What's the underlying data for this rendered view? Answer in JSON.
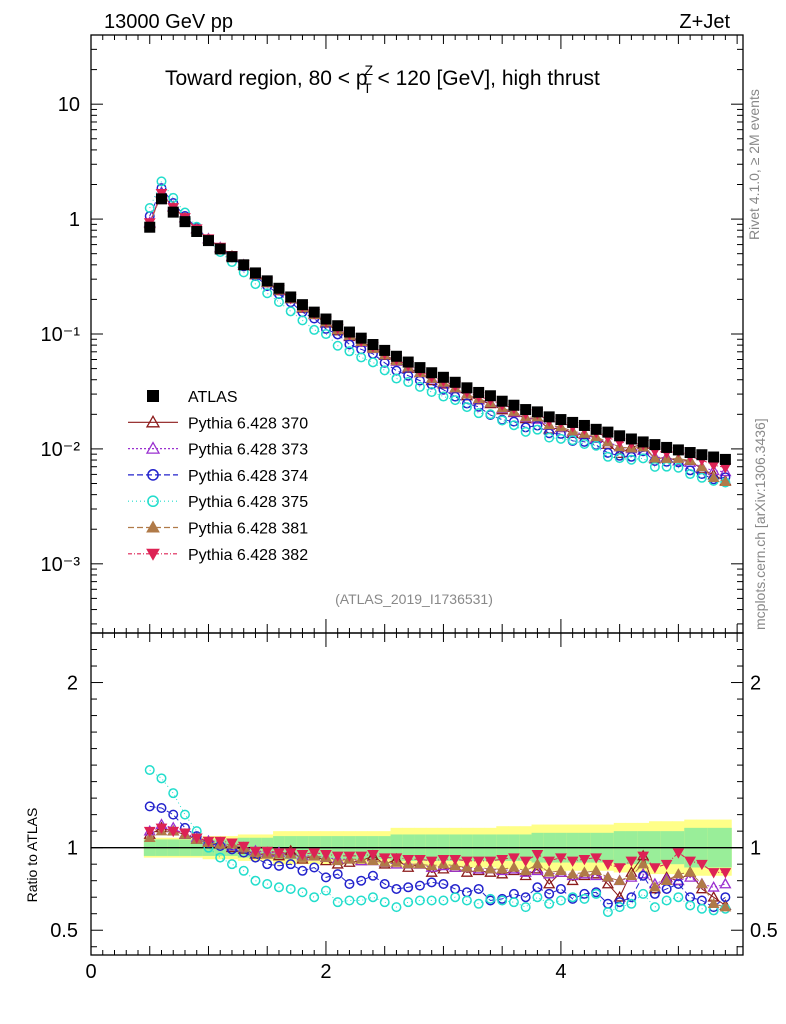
{
  "header": {
    "left": "13000 GeV pp",
    "right": "Z+Jet"
  },
  "title": {
    "prefix": "Toward region, 80 < p",
    "sup": "Z",
    "sub": "T",
    "suffix": " < 120 [GeV], high thrust"
  },
  "side": {
    "rivet": "Rivet 4.1.0, ≥ 2M events",
    "mcplots": "mcplots.cern.ch [arXiv:1306.3436]"
  },
  "analysis_tag": "(ATLAS_2019_I1736531)",
  "colors": {
    "ATLAS": "#000000",
    "370": "#8b1a1a",
    "373": "#9a30d0",
    "374": "#2222cc",
    "375": "#22ddcc",
    "381": "#b07a48",
    "382": "#dd2255",
    "band_inner": "#99ee99",
    "band_outer": "#ffff88"
  },
  "legend": [
    {
      "key": "ATLAS",
      "label": "ATLAS"
    },
    {
      "key": "370",
      "label": "Pythia 6.428 370"
    },
    {
      "key": "373",
      "label": "Pythia 6.428 373"
    },
    {
      "key": "374",
      "label": "Pythia 6.428 374"
    },
    {
      "key": "375",
      "label": "Pythia 6.428 375"
    },
    {
      "key": "381",
      "label": "Pythia 6.428 381"
    },
    {
      "key": "382",
      "label": "Pythia 6.428 382"
    }
  ],
  "chart_data": {
    "type": "scatter",
    "x": [
      0.5,
      0.6,
      0.7,
      0.8,
      0.9,
      1.0,
      1.1,
      1.2,
      1.3,
      1.4,
      1.5,
      1.6,
      1.7,
      1.8,
      1.9,
      2.0,
      2.1,
      2.2,
      2.3,
      2.4,
      2.5,
      2.6,
      2.7,
      2.8,
      2.9,
      3.0,
      3.1,
      3.2,
      3.3,
      3.4,
      3.5,
      3.6,
      3.7,
      3.8,
      3.9,
      4.0,
      4.1,
      4.2,
      4.3,
      4.4,
      4.5,
      4.6,
      4.7,
      4.8,
      4.9,
      5.0,
      5.1,
      5.2,
      5.3,
      5.4
    ],
    "atlas": [
      0.85,
      1.5,
      1.15,
      0.95,
      0.78,
      0.65,
      0.55,
      0.47,
      0.4,
      0.34,
      0.29,
      0.25,
      0.21,
      0.18,
      0.155,
      0.135,
      0.118,
      0.104,
      0.092,
      0.081,
      0.072,
      0.064,
      0.057,
      0.051,
      0.046,
      0.042,
      0.038,
      0.034,
      0.031,
      0.029,
      0.026,
      0.024,
      0.022,
      0.021,
      0.019,
      0.018,
      0.017,
      0.016,
      0.0148,
      0.014,
      0.013,
      0.0122,
      0.0115,
      0.0109,
      0.0103,
      0.0098,
      0.0093,
      0.0089,
      0.0085,
      0.0081
    ],
    "main": {
      "xlim": [
        0,
        5.55
      ],
      "ylim": [
        0.00025,
        40
      ],
      "yscale": "log",
      "ytick_labels": [
        "10⁻³",
        "10⁻²",
        "10⁻¹",
        "1",
        "10"
      ]
    },
    "ratio": {
      "ylabel": "Ratio to ATLAS",
      "ylim": [
        0.35,
        2.3
      ],
      "yticks": [
        0.5,
        1,
        2
      ],
      "ytick_labels": [
        "0.5",
        "1",
        "2"
      ],
      "xticks": [
        0,
        2,
        4
      ],
      "xtick_labels": [
        "0",
        "2",
        "4"
      ]
    },
    "band": {
      "inner": [
        0.05,
        0.05,
        0.05,
        0.05,
        0.05,
        0.05,
        0.05,
        0.05,
        0.06,
        0.06,
        0.06,
        0.07,
        0.07,
        0.07,
        0.07,
        0.07,
        0.07,
        0.07,
        0.07,
        0.07,
        0.07,
        0.08,
        0.08,
        0.08,
        0.08,
        0.08,
        0.08,
        0.08,
        0.08,
        0.08,
        0.08,
        0.08,
        0.08,
        0.09,
        0.09,
        0.09,
        0.09,
        0.09,
        0.09,
        0.09,
        0.1,
        0.1,
        0.1,
        0.1,
        0.1,
        0.1,
        0.12,
        0.12,
        0.12,
        0.12
      ],
      "outer": [
        0.06,
        0.06,
        0.06,
        0.06,
        0.06,
        0.07,
        0.07,
        0.07,
        0.08,
        0.08,
        0.08,
        0.1,
        0.1,
        0.1,
        0.1,
        0.1,
        0.1,
        0.1,
        0.1,
        0.1,
        0.1,
        0.12,
        0.12,
        0.12,
        0.12,
        0.12,
        0.12,
        0.12,
        0.12,
        0.12,
        0.13,
        0.13,
        0.13,
        0.14,
        0.14,
        0.14,
        0.14,
        0.14,
        0.14,
        0.14,
        0.15,
        0.15,
        0.15,
        0.16,
        0.16,
        0.16,
        0.17,
        0.17,
        0.17,
        0.17
      ]
    },
    "series": [
      {
        "name": "Pythia 6.428 370",
        "key": "370",
        "marker": "triangle-up-open",
        "dash": "",
        "ratio": [
          1.08,
          1.12,
          1.1,
          1.08,
          1.05,
          1.03,
          1.02,
          1.0,
          0.99,
          0.96,
          0.96,
          0.95,
          0.98,
          0.93,
          0.95,
          0.92,
          0.9,
          0.91,
          0.92,
          0.95,
          0.9,
          0.93,
          0.88,
          0.9,
          0.85,
          0.87,
          0.88,
          0.85,
          0.86,
          0.85,
          0.84,
          0.86,
          0.83,
          0.87,
          0.78,
          0.85,
          0.8,
          0.83,
          0.84,
          0.78,
          0.7,
          0.85,
          0.95,
          0.75,
          0.82,
          0.8,
          0.85,
          0.75,
          0.7,
          0.65
        ]
      },
      {
        "name": "Pythia 6.428 373",
        "key": "373",
        "marker": "triangle-up-open",
        "dash": "2,2",
        "ratio": [
          1.1,
          1.14,
          1.12,
          1.08,
          1.06,
          1.04,
          1.03,
          1.01,
          1.0,
          0.98,
          0.97,
          0.97,
          0.96,
          0.95,
          0.95,
          0.94,
          0.93,
          0.93,
          0.92,
          0.92,
          0.91,
          0.9,
          0.9,
          0.9,
          0.88,
          0.89,
          0.88,
          0.88,
          0.87,
          0.87,
          0.86,
          0.87,
          0.85,
          0.86,
          0.84,
          0.85,
          0.83,
          0.84,
          0.83,
          0.82,
          0.8,
          0.82,
          0.84,
          0.78,
          0.81,
          0.8,
          0.82,
          0.78,
          0.76,
          0.78
        ]
      },
      {
        "name": "Pythia 6.428 374",
        "key": "374",
        "marker": "circle-open",
        "dash": "6,3",
        "ratio": [
          1.25,
          1.24,
          1.2,
          1.12,
          1.07,
          1.03,
          1.01,
          0.99,
          0.97,
          0.94,
          0.9,
          0.89,
          0.9,
          0.86,
          0.88,
          0.82,
          0.84,
          0.78,
          0.8,
          0.83,
          0.78,
          0.75,
          0.76,
          0.77,
          0.79,
          0.78,
          0.75,
          0.73,
          0.75,
          0.68,
          0.69,
          0.72,
          0.7,
          0.76,
          0.72,
          0.75,
          0.69,
          0.72,
          0.73,
          0.66,
          0.67,
          0.7,
          0.83,
          0.72,
          0.75,
          0.78,
          0.7,
          0.68,
          0.64,
          0.7
        ]
      },
      {
        "name": "Pythia 6.428 375",
        "key": "375",
        "marker": "circle-open",
        "dash": "1,3",
        "ratio": [
          1.47,
          1.42,
          1.33,
          1.2,
          1.1,
          1.0,
          0.94,
          0.9,
          0.86,
          0.8,
          0.78,
          0.76,
          0.75,
          0.73,
          0.7,
          0.74,
          0.67,
          0.68,
          0.68,
          0.7,
          0.67,
          0.64,
          0.67,
          0.68,
          0.68,
          0.68,
          0.7,
          0.68,
          0.66,
          0.69,
          0.68,
          0.67,
          0.64,
          0.7,
          0.66,
          0.68,
          0.7,
          0.69,
          0.72,
          0.61,
          0.64,
          0.66,
          0.72,
          0.64,
          0.68,
          0.7,
          0.65,
          0.63,
          0.62,
          0.63
        ]
      },
      {
        "name": "Pythia 6.428 381",
        "key": "381",
        "marker": "triangle-up-filled",
        "dash": "6,3",
        "ratio": [
          1.06,
          1.1,
          1.1,
          1.08,
          1.05,
          1.03,
          1.02,
          1.02,
          1.0,
          0.97,
          0.96,
          0.96,
          0.96,
          0.94,
          0.95,
          0.94,
          0.92,
          0.93,
          0.93,
          0.92,
          0.91,
          0.91,
          0.9,
          0.9,
          0.89,
          0.9,
          0.89,
          0.88,
          0.88,
          0.87,
          0.87,
          0.88,
          0.86,
          0.9,
          0.85,
          0.86,
          0.84,
          0.85,
          0.86,
          0.82,
          0.8,
          0.83,
          0.9,
          0.76,
          0.8,
          0.84,
          0.85,
          0.78,
          0.66,
          0.64
        ]
      },
      {
        "name": "Pythia 6.428 382",
        "key": "382",
        "marker": "triangle-down-filled",
        "dash": "4,2,1,2",
        "ratio": [
          1.1,
          1.12,
          1.1,
          1.09,
          1.06,
          1.04,
          1.04,
          1.03,
          1.01,
          0.98,
          0.98,
          0.97,
          0.97,
          0.96,
          0.97,
          0.96,
          0.95,
          0.95,
          0.95,
          0.96,
          0.94,
          0.94,
          0.93,
          0.93,
          0.92,
          0.93,
          0.93,
          0.92,
          0.92,
          0.92,
          0.93,
          0.94,
          0.92,
          0.96,
          0.92,
          0.94,
          0.92,
          0.93,
          0.94,
          0.9,
          0.88,
          0.92,
          0.95,
          0.88,
          0.9,
          0.97,
          0.92,
          0.9,
          0.85,
          0.85
        ]
      }
    ]
  }
}
